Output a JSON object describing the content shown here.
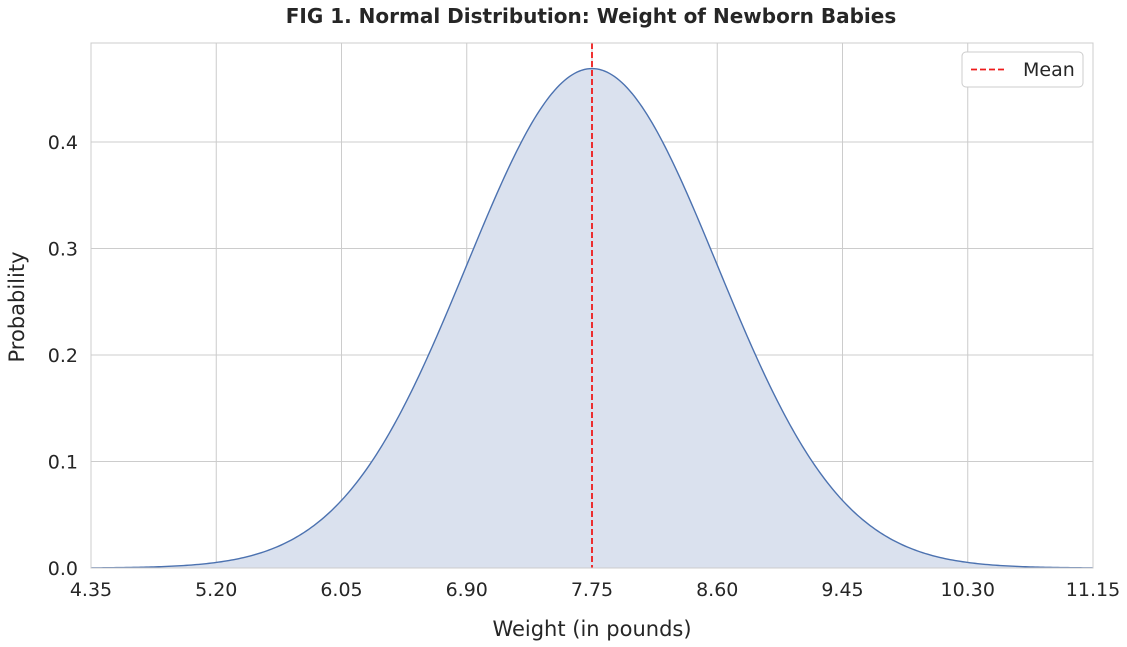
{
  "chart_data": {
    "type": "area",
    "title": "FIG 1. Normal Distribution: Weight of Newborn Babies",
    "xlabel": "Weight (in pounds)",
    "ylabel": "Probability",
    "xlim": [
      4.35,
      11.15
    ],
    "ylim": [
      0,
      0.493
    ],
    "x_ticks": [
      4.35,
      5.2,
      6.05,
      6.9,
      7.75,
      8.6,
      9.45,
      10.3,
      11.15
    ],
    "x_tick_labels": [
      "4.35",
      "5.20",
      "6.05",
      "6.90",
      "7.75",
      "8.60",
      "9.45",
      "10.30",
      "11.15"
    ],
    "y_ticks": [
      0.0,
      0.1,
      0.2,
      0.3,
      0.4
    ],
    "y_tick_labels": [
      "0.0",
      "0.1",
      "0.2",
      "0.3",
      "0.4"
    ],
    "distribution": {
      "name": "normal",
      "mean": 7.75,
      "std": 0.85,
      "peak": 0.469
    },
    "series": [
      {
        "name": "density",
        "kind": "line",
        "color": "#4c72b0",
        "fill_color": "#dae1ee"
      }
    ],
    "annotations": [
      {
        "name": "Mean",
        "kind": "vertical-dashed-line",
        "x": 7.75,
        "color": "#ee1b1b"
      }
    ],
    "legend": {
      "position": "top-right",
      "entries": [
        {
          "label": "Mean",
          "color": "#ee1b1b",
          "style": "dashed"
        }
      ]
    },
    "grid": true,
    "grid_color": "#cccccc"
  }
}
